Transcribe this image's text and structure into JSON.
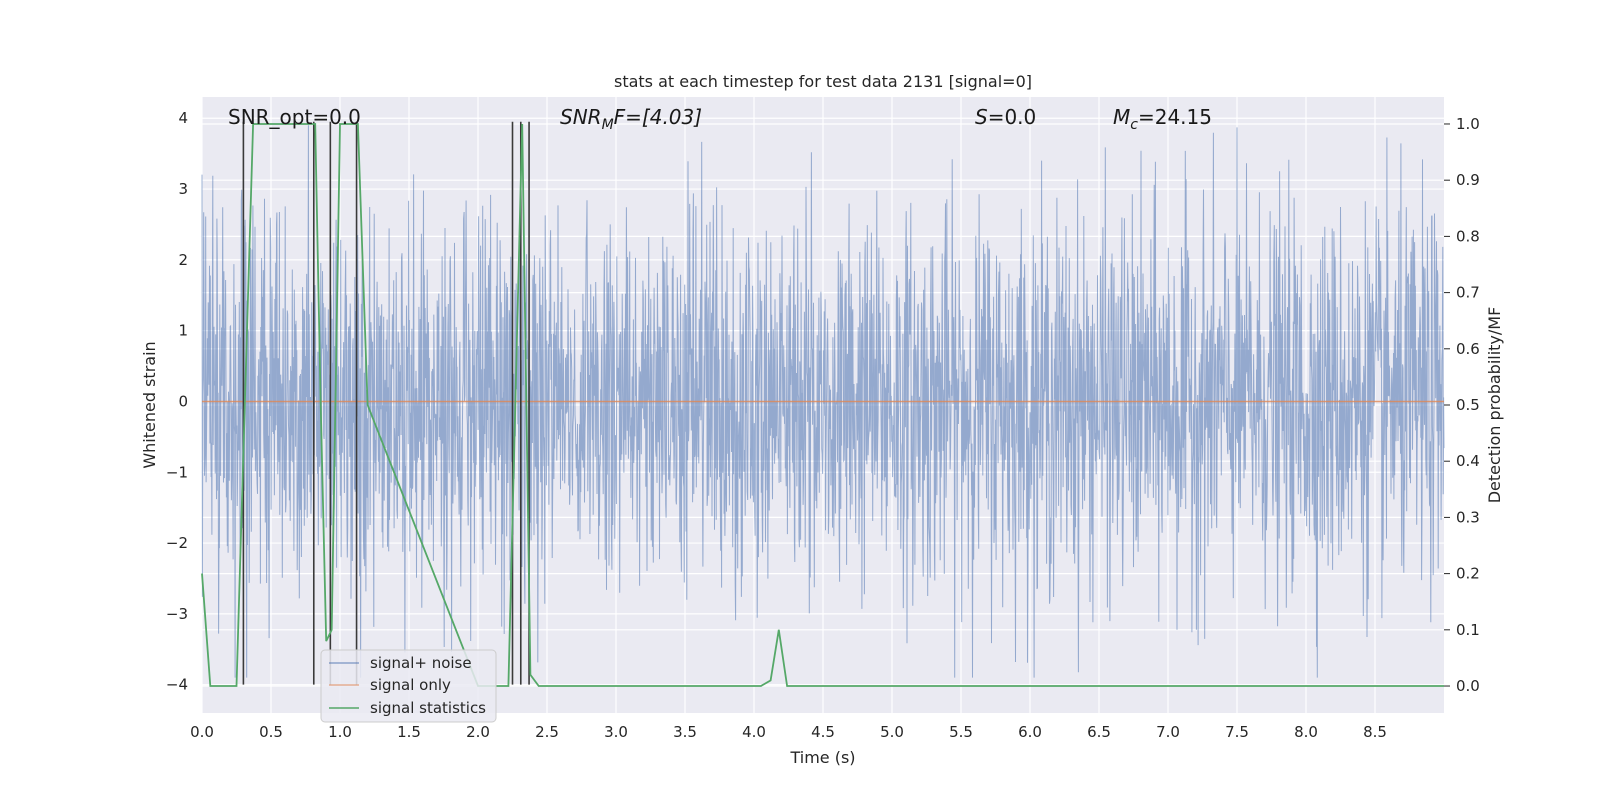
{
  "chart_data": {
    "type": "line",
    "title": "stats at each timestep for test data 2131 [signal=0]",
    "xlabel": "Time (s)",
    "ylabel": "Whitened strain",
    "y2label": "Detection probability/MF",
    "xlim": [
      0.0,
      9.0
    ],
    "ylim": [
      -4.4,
      4.3
    ],
    "y2lim": [
      -0.048,
      1.048
    ],
    "x_ticks": [
      0.0,
      0.5,
      1.0,
      1.5,
      2.0,
      2.5,
      3.0,
      3.5,
      4.0,
      4.5,
      5.0,
      5.5,
      6.0,
      6.5,
      7.0,
      7.5,
      8.0,
      8.5
    ],
    "x_tick_labels": [
      "0.0",
      "0.5",
      "1.0",
      "1.5",
      "2.0",
      "2.5",
      "3.0",
      "3.5",
      "4.0",
      "4.5",
      "5.0",
      "5.5",
      "6.0",
      "6.5",
      "7.0",
      "7.5",
      "8.0",
      "8.5"
    ],
    "y_ticks": [
      4,
      3,
      2,
      1,
      0,
      -1,
      -2,
      -3,
      -4
    ],
    "y_tick_labels": [
      "4",
      "3",
      "2",
      "1",
      "0",
      "−1",
      "−2",
      "−3",
      "−4"
    ],
    "y2_ticks": [
      1.0,
      0.9,
      0.8,
      0.7,
      0.6,
      0.5,
      0.4,
      0.3,
      0.2,
      0.1,
      0.0
    ],
    "y2_tick_labels": [
      "1.0",
      "0.9",
      "0.8",
      "0.7",
      "0.6",
      "0.5",
      "0.4",
      "0.3",
      "0.2",
      "0.1",
      "0.0"
    ],
    "grid": true,
    "legend_position": "lower-left",
    "annotations": {
      "snr_opt": "SNR_opt=0.0",
      "snr_mf_base": "SNR",
      "snr_mf_sub": "M",
      "snr_mf_rest": "F=[4.03]",
      "s_italic": "S",
      "s_rest": "=0.0",
      "mc_base": "M",
      "mc_sub": "c",
      "mc_rest": "=24.15"
    },
    "series": [
      {
        "name": "signal+ noise",
        "color": "#4c72b0",
        "style": "dense whitened strain, approx ±1.5 typical with peaks to ±3.9",
        "x_range": [
          0.0,
          9.0
        ],
        "typical_amplitude": 1.5,
        "peak_amplitude": 3.9
      },
      {
        "name": "signal only",
        "color": "#dd8452",
        "x": [
          0.0,
          9.0
        ],
        "y": [
          0.0,
          0.0
        ]
      },
      {
        "name": "signal statistics",
        "color": "#55a868",
        "x": [
          0.0,
          0.06,
          0.25,
          0.31,
          0.37,
          0.82,
          0.86,
          0.9,
          0.94,
          1.0,
          1.13,
          1.2,
          2.0,
          2.22,
          2.32,
          2.38,
          2.44,
          4.05,
          4.12,
          4.18,
          4.24,
          9.0
        ],
        "y2": [
          0.2,
          0.0,
          0.0,
          0.5,
          1.0,
          1.0,
          0.5,
          0.08,
          0.1,
          1.0,
          1.0,
          0.5,
          0.0,
          0.0,
          1.0,
          0.02,
          0.0,
          0.0,
          0.01,
          0.1,
          0.0,
          0.0
        ]
      }
    ],
    "vertical_markers": {
      "color": "#3a3a3a",
      "x": [
        0.3,
        0.81,
        0.93,
        1.12,
        2.25,
        2.31,
        2.37
      ]
    }
  }
}
